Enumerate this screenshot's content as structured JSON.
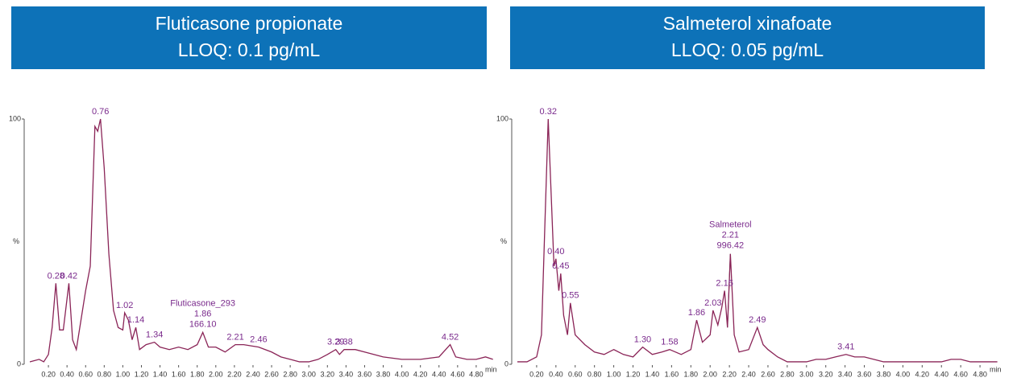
{
  "chart_data": [
    {
      "type": "line",
      "title": "Fluticasone propionate",
      "subtitle": "LLOQ: 0.1 pg/mL",
      "ylabel": "%",
      "xlabel": "min",
      "x": [
        0,
        0.1,
        0.15,
        0.2,
        0.24,
        0.28,
        0.32,
        0.36,
        0.42,
        0.46,
        0.5,
        0.55,
        0.6,
        0.65,
        0.7,
        0.73,
        0.76,
        0.8,
        0.85,
        0.9,
        0.95,
        1.0,
        1.02,
        1.06,
        1.1,
        1.14,
        1.18,
        1.25,
        1.34,
        1.4,
        1.5,
        1.6,
        1.7,
        1.8,
        1.86,
        1.92,
        2.0,
        2.1,
        2.21,
        2.3,
        2.46,
        2.6,
        2.7,
        2.8,
        2.9,
        3.0,
        3.1,
        3.2,
        3.29,
        3.33,
        3.38,
        3.5,
        3.6,
        3.8,
        4.0,
        4.2,
        4.4,
        4.52,
        4.58,
        4.7,
        4.8,
        4.9,
        4.98
      ],
      "series": [
        {
          "color": "#8a2457",
          "values": [
            1,
            2,
            1,
            4,
            15,
            33,
            14,
            14,
            33,
            10,
            6,
            18,
            30,
            40,
            97,
            95,
            100,
            80,
            45,
            22,
            15,
            14,
            21,
            18,
            10,
            15,
            6,
            8,
            9,
            7,
            6,
            7,
            6,
            8,
            13,
            7,
            7,
            5,
            8,
            8,
            7,
            5,
            3,
            2,
            1,
            1,
            2,
            4,
            6,
            4,
            6,
            6,
            5,
            3,
            2,
            2,
            3,
            8,
            3,
            2,
            2,
            3,
            2
          ]
        }
      ],
      "xlim": [
        0,
        5
      ],
      "ylim": [
        0,
        100
      ],
      "yticks": [
        0,
        100
      ],
      "xticks": [
        {
          "value": 0.2,
          "label": "0.20"
        },
        {
          "value": 0.4,
          "label": "0.40"
        },
        {
          "value": 0.6,
          "label": "0.60"
        },
        {
          "value": 0.8,
          "label": "0.80"
        },
        {
          "value": 1.0,
          "label": "1.00"
        },
        {
          "value": 1.2,
          "label": "1.20"
        },
        {
          "value": 1.4,
          "label": "1.40"
        },
        {
          "value": 1.6,
          "label": "1.60"
        },
        {
          "value": 1.8,
          "label": "1.80"
        },
        {
          "value": 2.0,
          "label": "2.00"
        },
        {
          "value": 2.2,
          "label": "2.20"
        },
        {
          "value": 2.4,
          "label": "2.40"
        },
        {
          "value": 2.6,
          "label": "2.60"
        },
        {
          "value": 2.8,
          "label": "2.80"
        },
        {
          "value": 3.0,
          "label": "3.00"
        },
        {
          "value": 3.2,
          "label": "3.20"
        },
        {
          "value": 3.4,
          "label": "3.40"
        },
        {
          "value": 3.6,
          "label": "3.60"
        },
        {
          "value": 3.8,
          "label": "3.80"
        },
        {
          "value": 4.0,
          "label": "4.00"
        },
        {
          "value": 4.2,
          "label": "4.20"
        },
        {
          "value": 4.4,
          "label": "4.40"
        },
        {
          "value": 4.6,
          "label": "4.60"
        },
        {
          "value": 4.8,
          "label": "4.80"
        }
      ],
      "peaks": {
        "x": [
          0.28,
          0.42,
          0.76,
          1.02,
          1.14,
          1.34,
          2.21,
          2.46,
          3.29,
          3.38,
          4.52
        ],
        "y": [
          33,
          33,
          100,
          21,
          15,
          9,
          8,
          7,
          6,
          6,
          8
        ],
        "value_labels": [
          "0.28",
          "0.42",
          "0.76",
          "1.02",
          "1.14",
          "1.34",
          "2.21",
          "2.46",
          "3.29",
          "3.38",
          "4.52"
        ]
      },
      "highlight": {
        "x": 1.86,
        "lines": [
          "Fluticasone_293",
          "1.86",
          "166.10"
        ]
      }
    },
    {
      "type": "line",
      "title": "Salmeterol xinafoate",
      "subtitle": "LLOQ: 0.05 pg/mL",
      "ylabel": "%",
      "xlabel": "min",
      "x": [
        0,
        0.1,
        0.2,
        0.25,
        0.28,
        0.32,
        0.35,
        0.38,
        0.4,
        0.43,
        0.45,
        0.48,
        0.52,
        0.55,
        0.6,
        0.7,
        0.8,
        0.9,
        1.0,
        1.1,
        1.2,
        1.3,
        1.4,
        1.5,
        1.58,
        1.7,
        1.8,
        1.86,
        1.92,
        2.0,
        2.03,
        2.08,
        2.12,
        2.15,
        2.18,
        2.21,
        2.25,
        2.3,
        2.4,
        2.49,
        2.55,
        2.6,
        2.7,
        2.8,
        2.9,
        3.0,
        3.1,
        3.2,
        3.3,
        3.41,
        3.5,
        3.6,
        3.8,
        4.0,
        4.2,
        4.4,
        4.5,
        4.6,
        4.7,
        4.8,
        4.9,
        4.98
      ],
      "series": [
        {
          "color": "#8a2457",
          "values": [
            1,
            1,
            3,
            12,
            50,
            100,
            70,
            40,
            43,
            30,
            37,
            20,
            12,
            25,
            12,
            8,
            5,
            4,
            6,
            4,
            3,
            7,
            4,
            5,
            6,
            4,
            6,
            18,
            9,
            12,
            22,
            16,
            23,
            30,
            15,
            45,
            12,
            5,
            6,
            15,
            8,
            6,
            3,
            1,
            1,
            1,
            2,
            2,
            3,
            4,
            3,
            3,
            1,
            1,
            1,
            1,
            2,
            2,
            1,
            1,
            1,
            1
          ]
        }
      ],
      "xlim": [
        0,
        5
      ],
      "ylim": [
        0,
        100
      ],
      "yticks": [
        0,
        100
      ],
      "xticks": [
        {
          "value": 0.2,
          "label": "0.20"
        },
        {
          "value": 0.4,
          "label": "0.40"
        },
        {
          "value": 0.6,
          "label": "0.60"
        },
        {
          "value": 0.8,
          "label": "0.80"
        },
        {
          "value": 1.0,
          "label": "1.00"
        },
        {
          "value": 1.2,
          "label": "1.20"
        },
        {
          "value": 1.4,
          "label": "1.40"
        },
        {
          "value": 1.6,
          "label": "1.60"
        },
        {
          "value": 1.8,
          "label": "1.80"
        },
        {
          "value": 2.0,
          "label": "2.00"
        },
        {
          "value": 2.2,
          "label": "2.20"
        },
        {
          "value": 2.4,
          "label": "2.40"
        },
        {
          "value": 2.6,
          "label": "2.60"
        },
        {
          "value": 2.8,
          "label": "2.80"
        },
        {
          "value": 3.0,
          "label": "3.00"
        },
        {
          "value": 3.2,
          "label": "3.20"
        },
        {
          "value": 3.4,
          "label": "3.40"
        },
        {
          "value": 3.6,
          "label": "3.60"
        },
        {
          "value": 3.8,
          "label": "3.80"
        },
        {
          "value": 4.0,
          "label": "4.00"
        },
        {
          "value": 4.2,
          "label": "4.20"
        },
        {
          "value": 4.4,
          "label": "4.40"
        },
        {
          "value": 4.6,
          "label": "4.60"
        },
        {
          "value": 4.8,
          "label": "4.80"
        }
      ],
      "peaks": {
        "x": [
          0.32,
          0.4,
          0.45,
          0.55,
          1.3,
          1.58,
          1.86,
          2.03,
          2.15,
          2.49,
          3.41
        ],
        "y": [
          100,
          43,
          37,
          25,
          7,
          6,
          18,
          22,
          30,
          15,
          4
        ],
        "value_labels": [
          "0.32",
          "0.40",
          "0.45",
          "0.55",
          "1.30",
          "1.58",
          "1.86",
          "2.03",
          "2.15",
          "2.49",
          "3.41"
        ]
      },
      "highlight": {
        "x": 2.21,
        "lines": [
          "Salmeterol",
          "2.21",
          "996.42"
        ]
      }
    }
  ]
}
